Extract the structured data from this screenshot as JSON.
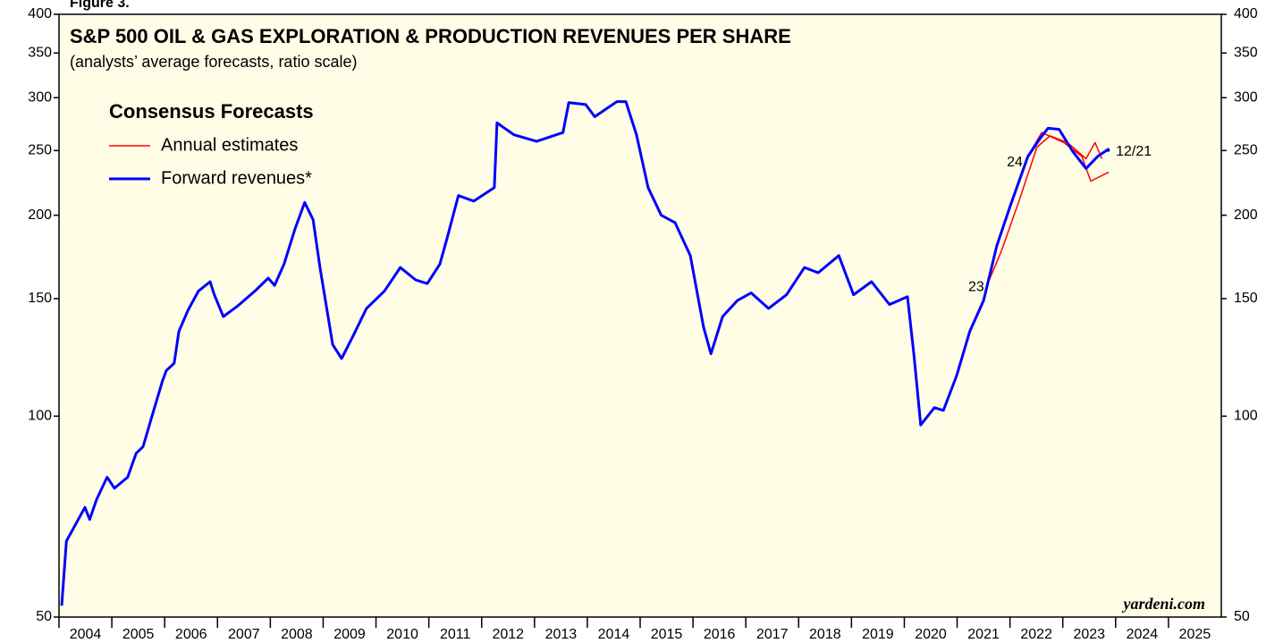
{
  "chart_data": {
    "type": "line",
    "figure_label": "Figure 3.",
    "title": "S&P 500 OIL & GAS EXPLORATION & PRODUCTION REVENUES PER SHARE",
    "subtitle": "(analysts’ average forecasts, ratio scale)",
    "source": "yardeni.com",
    "legend": {
      "title": "Consensus Forecasts",
      "items": [
        {
          "label": "Annual estimates",
          "color": "#ff0000"
        },
        {
          "label": "Forward revenues*",
          "color": "#0000ff"
        }
      ]
    },
    "log_scale": true,
    "ylim": [
      50,
      400
    ],
    "yticks": [
      50,
      100,
      150,
      200,
      250,
      300,
      350,
      400
    ],
    "xlim": [
      2004,
      2026
    ],
    "xticks": [
      {
        "value": 2004.5,
        "label": "2004"
      },
      {
        "value": 2005.5,
        "label": "2005"
      },
      {
        "value": 2006.5,
        "label": "2006"
      },
      {
        "value": 2007.5,
        "label": "2007"
      },
      {
        "value": 2008.5,
        "label": "2008"
      },
      {
        "value": 2009.5,
        "label": "2009"
      },
      {
        "value": 2010.5,
        "label": "2010"
      },
      {
        "value": 2011.5,
        "label": "2011"
      },
      {
        "value": 2012.5,
        "label": "2012"
      },
      {
        "value": 2013.5,
        "label": "2013"
      },
      {
        "value": 2014.5,
        "label": "2014"
      },
      {
        "value": 2015.5,
        "label": "2015"
      },
      {
        "value": 2016.5,
        "label": "2016"
      },
      {
        "value": 2017.5,
        "label": "2017"
      },
      {
        "value": 2018.5,
        "label": "2018"
      },
      {
        "value": 2019.5,
        "label": "2019"
      },
      {
        "value": 2020.5,
        "label": "2020"
      },
      {
        "value": 2021.5,
        "label": "2021"
      },
      {
        "value": 2022.5,
        "label": "2022"
      },
      {
        "value": 2023.5,
        "label": "2023"
      },
      {
        "value": 2024.5,
        "label": "2024"
      },
      {
        "value": 2025.5,
        "label": "2025"
      }
    ],
    "series": [
      {
        "label": "23",
        "color": "#ff0000",
        "x": [
          2021.58,
          2021.84,
          2022.17,
          2022.51,
          2022.76,
          2023.09,
          2023.44,
          2023.61,
          2023.74
        ],
        "values": [
          158,
          177,
          210,
          253,
          263,
          257,
          243,
          257,
          243
        ]
      },
      {
        "label": "24",
        "color": "#ff0000",
        "x": [
          2022.31,
          2022.6,
          2023.02,
          2023.36,
          2023.53,
          2023.87
        ],
        "values": [
          243,
          266,
          257,
          245,
          225,
          232
        ]
      },
      {
        "label": "12/21",
        "color": "#0000ff",
        "x": [
          2004.05,
          2004.14,
          2004.49,
          2004.58,
          2004.71,
          2004.91,
          2005.05,
          2005.3,
          2005.46,
          2005.59,
          2005.76,
          2005.96,
          2006.03,
          2006.18,
          2006.27,
          2006.44,
          2006.64,
          2006.86,
          2006.94,
          2007.11,
          2007.37,
          2007.71,
          2007.96,
          2008.08,
          2008.26,
          2008.47,
          2008.65,
          2008.81,
          2008.94,
          2009.18,
          2009.35,
          2009.57,
          2009.82,
          2010.16,
          2010.46,
          2010.75,
          2010.97,
          2011.21,
          2011.34,
          2011.56,
          2011.85,
          2012.24,
          2012.29,
          2012.61,
          2013.04,
          2013.54,
          2013.65,
          2013.97,
          2014.14,
          2014.56,
          2014.73,
          2014.93,
          2015.15,
          2015.4,
          2015.66,
          2015.95,
          2016.2,
          2016.34,
          2016.56,
          2016.84,
          2017.1,
          2017.43,
          2017.77,
          2018.11,
          2018.37,
          2018.76,
          2019.04,
          2019.38,
          2019.72,
          2020.06,
          2020.18,
          2020.31,
          2020.57,
          2020.74,
          2020.99,
          2021.24,
          2021.5,
          2021.75,
          2022.01,
          2022.34,
          2022.56,
          2022.72,
          2022.93,
          2023.19,
          2023.44,
          2023.66,
          2023.86,
          2023.87
        ],
        "values": [
          52,
          65,
          73,
          70,
          75,
          81,
          78,
          81,
          88,
          90,
          100,
          113,
          117,
          120,
          134,
          144,
          154,
          159,
          152,
          141,
          146,
          154,
          161,
          157,
          169,
          191,
          209,
          197,
          167,
          128,
          122,
          132,
          145,
          154,
          167,
          160,
          158,
          169,
          184,
          214,
          210,
          220,
          275,
          264,
          258,
          266,
          295,
          293,
          281,
          296,
          296,
          264,
          220,
          200,
          195,
          174,
          136,
          124,
          141,
          149,
          153,
          145,
          152,
          167,
          164,
          174,
          152,
          159,
          147,
          151,
          124,
          97,
          103,
          102,
          115,
          134,
          149,
          180,
          207,
          245,
          260,
          270,
          269,
          249,
          235,
          245,
          251,
          249
        ]
      }
    ]
  }
}
